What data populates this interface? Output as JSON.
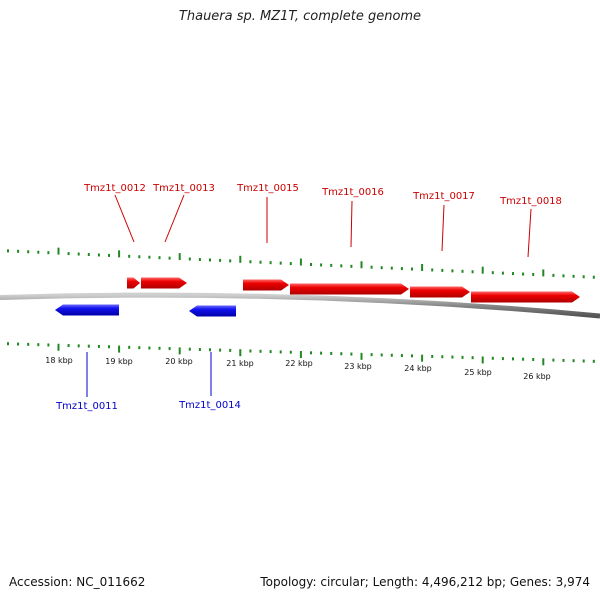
{
  "title": "Thauera sp. MZ1T, complete genome",
  "footer": {
    "accession": "Accession: NC_011662",
    "summary": "Topology: circular; Length: 4,496,212 bp; Genes: 3,974"
  },
  "colors": {
    "forward_gene": "#ee0000",
    "reverse_gene": "#1111ee",
    "ticks": "#228822",
    "backbone": "#888888",
    "forward_label": "#cc0000",
    "reverse_label": "#0000cc"
  },
  "scale_labels": [
    "18 kbp",
    "19 kbp",
    "20 kbp",
    "21 kbp",
    "22 kbp",
    "23 kbp",
    "24 kbp",
    "25 kbp",
    "26 kbp"
  ],
  "genes": [
    {
      "id": "Tmz1t_0011",
      "strand": "reverse",
      "labelled": true
    },
    {
      "id": "Tmz1t_0012",
      "strand": "forward",
      "labelled": true
    },
    {
      "id": "Tmz1t_0013",
      "strand": "forward",
      "labelled": true
    },
    {
      "id": "Tmz1t_0014",
      "strand": "reverse",
      "labelled": true
    },
    {
      "id": "Tmz1t_0015",
      "strand": "forward",
      "labelled": true
    },
    {
      "id": "Tmz1t_0016",
      "strand": "forward",
      "labelled": true
    },
    {
      "id": "Tmz1t_0017",
      "strand": "forward",
      "labelled": true
    },
    {
      "id": "Tmz1t_0018",
      "strand": "forward",
      "labelled": true
    }
  ]
}
